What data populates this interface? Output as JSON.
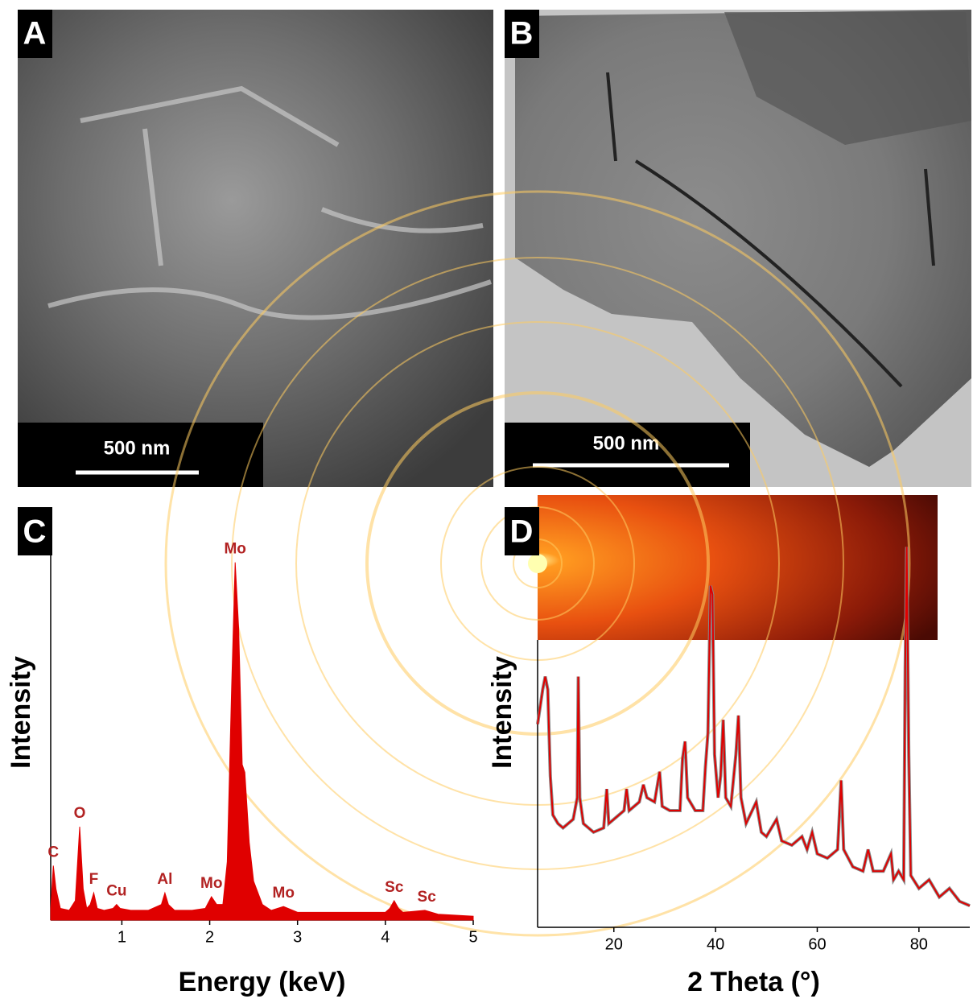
{
  "panels": [
    {
      "label": "A",
      "scale_bar": "500 nm"
    },
    {
      "label": "B",
      "scale_bar": "500 nm"
    }
  ],
  "chart_data": [
    {
      "type": "area",
      "label": "C",
      "color": "#e00000",
      "x_label": "Energy (keV)",
      "y_label": "Intensity",
      "xlim": [
        0.19,
        5
      ],
      "ylim": [
        0,
        100
      ],
      "xticks": [
        1,
        2,
        3,
        4,
        5
      ],
      "x": [
        0.19,
        0.22,
        0.25,
        0.3,
        0.4,
        0.47,
        0.52,
        0.56,
        0.6,
        0.64,
        0.68,
        0.72,
        0.8,
        0.9,
        0.94,
        0.98,
        1.1,
        1.3,
        1.45,
        1.49,
        1.53,
        1.6,
        1.8,
        1.95,
        2.02,
        2.08,
        2.15,
        2.2,
        2.25,
        2.29,
        2.33,
        2.37,
        2.4,
        2.45,
        2.5,
        2.6,
        2.7,
        2.84,
        3.0,
        3.5,
        4.0,
        4.05,
        4.1,
        4.15,
        4.2,
        4.45,
        4.6,
        5.0
      ],
      "values": [
        3,
        14,
        8,
        3,
        2.5,
        5,
        24,
        8,
        3,
        4,
        7,
        3,
        2.5,
        3,
        4,
        3,
        2.5,
        2.5,
        4,
        7,
        4,
        2.5,
        2.5,
        3,
        6,
        4,
        4,
        15,
        60,
        92,
        75,
        40,
        38,
        20,
        10,
        4,
        2.5,
        3.5,
        2,
        2,
        2,
        3,
        5,
        3,
        2,
        2.5,
        1.5,
        1
      ],
      "annotations": [
        {
          "text": "C",
          "x": 0.22,
          "y": 14
        },
        {
          "text": "O",
          "x": 0.52,
          "y": 24
        },
        {
          "text": "F",
          "x": 0.68,
          "y": 7
        },
        {
          "text": "Cu",
          "x": 0.94,
          "y": 4
        },
        {
          "text": "Al",
          "x": 1.49,
          "y": 7
        },
        {
          "text": "Mo",
          "x": 2.02,
          "y": 6
        },
        {
          "text": "Mo",
          "x": 2.29,
          "y": 92
        },
        {
          "text": "Mo",
          "x": 2.84,
          "y": 3.5
        },
        {
          "text": "Sc",
          "x": 4.1,
          "y": 5
        },
        {
          "text": "Sc",
          "x": 4.47,
          "y": 2.5
        }
      ]
    },
    {
      "type": "line",
      "label": "D",
      "color": "#e00000",
      "x_label": "2 Theta (°)",
      "y_label": "Intensity",
      "xlim": [
        5,
        90
      ],
      "ylim": [
        0,
        100
      ],
      "xticks": [
        20,
        40,
        60,
        80
      ],
      "x": [
        5,
        6,
        6.5,
        7,
        7.5,
        8,
        9,
        10,
        11,
        12,
        12.8,
        13,
        13.3,
        14,
        16,
        18,
        18.6,
        19,
        20,
        22,
        22.5,
        23,
        25,
        25.8,
        26.5,
        28,
        29,
        29.5,
        31,
        33,
        33.5,
        34,
        34.5,
        36,
        37.5,
        38,
        38.5,
        39,
        39.4,
        39.8,
        40.5,
        41,
        41.5,
        42,
        43,
        44,
        44.5,
        45,
        46,
        48,
        49,
        50,
        52,
        53,
        55,
        57,
        58,
        59,
        60,
        62,
        64,
        64.7,
        65.2,
        67,
        69,
        70,
        71,
        73,
        74.5,
        75,
        76,
        77,
        77.3,
        77.6,
        78,
        78.4,
        80,
        82,
        84,
        86,
        88,
        90
      ],
      "values": [
        47,
        55,
        58,
        55,
        35,
        26,
        24,
        23,
        24,
        25,
        30,
        58,
        30,
        24,
        22,
        23,
        32,
        24,
        25,
        27,
        32,
        27,
        29,
        33,
        30,
        29,
        36,
        28,
        27,
        27,
        39,
        43,
        30,
        27,
        27,
        37,
        45,
        79,
        77,
        40,
        30,
        35,
        48,
        30,
        28,
        40,
        49,
        30,
        24,
        29,
        22,
        21,
        25,
        20,
        19,
        21,
        18,
        22,
        17,
        16,
        18,
        34,
        18,
        14,
        13,
        18,
        13,
        13,
        17,
        11,
        13,
        11,
        60,
        88,
        40,
        12,
        9,
        11,
        7,
        9,
        6,
        5
      ]
    }
  ]
}
